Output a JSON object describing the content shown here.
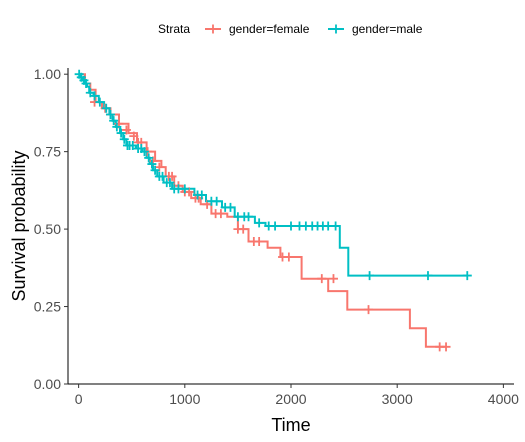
{
  "chart_data": {
    "type": "line",
    "xlabel": "Time",
    "ylabel": "Survival probability",
    "xlim": [
      -100,
      4100
    ],
    "ylim": [
      0,
      1.02
    ],
    "xticks": [
      0,
      1000,
      2000,
      3000,
      4000
    ],
    "xtick_labels": [
      "0",
      "1000",
      "2000",
      "3000",
      "4000"
    ],
    "yticks": [
      0,
      0.25,
      0.5,
      0.75,
      1
    ],
    "ytick_labels": [
      "0.00",
      "0.25",
      "0.50",
      "0.75",
      "1.00"
    ],
    "grid": false,
    "legend": {
      "title": "Strata",
      "position": "top",
      "entries": [
        "gender=female",
        "gender=male"
      ]
    },
    "series": [
      {
        "name": "gender=female",
        "color": "#F8766D",
        "steps": [
          [
            0,
            1.0
          ],
          [
            60,
            0.97
          ],
          [
            110,
            0.95
          ],
          [
            160,
            0.91
          ],
          [
            220,
            0.89
          ],
          [
            300,
            0.87
          ],
          [
            380,
            0.84
          ],
          [
            470,
            0.81
          ],
          [
            550,
            0.78
          ],
          [
            640,
            0.75
          ],
          [
            720,
            0.72
          ],
          [
            780,
            0.7
          ],
          [
            820,
            0.67
          ],
          [
            900,
            0.64
          ],
          [
            980,
            0.62
          ],
          [
            1060,
            0.6
          ],
          [
            1150,
            0.58
          ],
          [
            1250,
            0.55
          ],
          [
            1400,
            0.54
          ],
          [
            1500,
            0.5
          ],
          [
            1600,
            0.46
          ],
          [
            1780,
            0.44
          ],
          [
            1900,
            0.41
          ],
          [
            2100,
            0.34
          ],
          [
            2350,
            0.3
          ],
          [
            2530,
            0.24
          ],
          [
            3120,
            0.18
          ],
          [
            3270,
            0.12
          ],
          [
            3460,
            0.12
          ]
        ],
        "censored": [
          [
            150,
            0.91
          ],
          [
            250,
            0.89
          ],
          [
            300,
            0.87
          ],
          [
            380,
            0.84
          ],
          [
            450,
            0.82
          ],
          [
            520,
            0.8
          ],
          [
            560,
            0.78
          ],
          [
            590,
            0.78
          ],
          [
            650,
            0.75
          ],
          [
            700,
            0.72
          ],
          [
            760,
            0.7
          ],
          [
            850,
            0.67
          ],
          [
            880,
            0.67
          ],
          [
            940,
            0.64
          ],
          [
            1000,
            0.62
          ],
          [
            1040,
            0.62
          ],
          [
            1100,
            0.6
          ],
          [
            1130,
            0.6
          ],
          [
            1210,
            0.58
          ],
          [
            1290,
            0.55
          ],
          [
            1340,
            0.55
          ],
          [
            1500,
            0.5
          ],
          [
            1550,
            0.5
          ],
          [
            1650,
            0.46
          ],
          [
            1700,
            0.46
          ],
          [
            1920,
            0.41
          ],
          [
            1980,
            0.41
          ],
          [
            2290,
            0.34
          ],
          [
            2400,
            0.34
          ],
          [
            2730,
            0.24
          ],
          [
            3400,
            0.12
          ],
          [
            3460,
            0.12
          ]
        ]
      },
      {
        "name": "gender=male",
        "color": "#00BFC4",
        "steps": [
          [
            0,
            1.0
          ],
          [
            20,
            0.99
          ],
          [
            40,
            0.98
          ],
          [
            60,
            0.97
          ],
          [
            80,
            0.96
          ],
          [
            100,
            0.94
          ],
          [
            140,
            0.93
          ],
          [
            190,
            0.91
          ],
          [
            240,
            0.89
          ],
          [
            290,
            0.87
          ],
          [
            320,
            0.85
          ],
          [
            350,
            0.83
          ],
          [
            390,
            0.81
          ],
          [
            420,
            0.79
          ],
          [
            450,
            0.77
          ],
          [
            490,
            0.77
          ],
          [
            540,
            0.76
          ],
          [
            600,
            0.75
          ],
          [
            640,
            0.73
          ],
          [
            670,
            0.71
          ],
          [
            700,
            0.69
          ],
          [
            740,
            0.67
          ],
          [
            800,
            0.65
          ],
          [
            880,
            0.63
          ],
          [
            950,
            0.63
          ],
          [
            1090,
            0.61
          ],
          [
            1200,
            0.59
          ],
          [
            1350,
            0.57
          ],
          [
            1470,
            0.54
          ],
          [
            1660,
            0.52
          ],
          [
            1760,
            0.51
          ],
          [
            2460,
            0.44
          ],
          [
            2540,
            0.35
          ],
          [
            3660,
            0.35
          ]
        ],
        "censored": [
          [
            5,
            1.0
          ],
          [
            25,
            0.99
          ],
          [
            50,
            0.98
          ],
          [
            70,
            0.97
          ],
          [
            110,
            0.94
          ],
          [
            150,
            0.93
          ],
          [
            200,
            0.91
          ],
          [
            260,
            0.89
          ],
          [
            300,
            0.87
          ],
          [
            330,
            0.85
          ],
          [
            360,
            0.83
          ],
          [
            400,
            0.81
          ],
          [
            430,
            0.79
          ],
          [
            460,
            0.77
          ],
          [
            480,
            0.77
          ],
          [
            510,
            0.77
          ],
          [
            560,
            0.76
          ],
          [
            590,
            0.76
          ],
          [
            620,
            0.75
          ],
          [
            660,
            0.73
          ],
          [
            690,
            0.71
          ],
          [
            720,
            0.69
          ],
          [
            760,
            0.67
          ],
          [
            790,
            0.67
          ],
          [
            830,
            0.65
          ],
          [
            860,
            0.65
          ],
          [
            900,
            0.63
          ],
          [
            940,
            0.63
          ],
          [
            1000,
            0.63
          ],
          [
            1120,
            0.61
          ],
          [
            1160,
            0.61
          ],
          [
            1250,
            0.59
          ],
          [
            1300,
            0.59
          ],
          [
            1380,
            0.57
          ],
          [
            1430,
            0.57
          ],
          [
            1500,
            0.54
          ],
          [
            1560,
            0.54
          ],
          [
            1600,
            0.54
          ],
          [
            1700,
            0.52
          ],
          [
            1790,
            0.51
          ],
          [
            1850,
            0.51
          ],
          [
            2000,
            0.51
          ],
          [
            2080,
            0.51
          ],
          [
            2140,
            0.51
          ],
          [
            2200,
            0.51
          ],
          [
            2250,
            0.51
          ],
          [
            2300,
            0.51
          ],
          [
            2350,
            0.51
          ],
          [
            2420,
            0.51
          ],
          [
            2740,
            0.35
          ],
          [
            3290,
            0.35
          ],
          [
            3660,
            0.35
          ]
        ]
      }
    ]
  }
}
